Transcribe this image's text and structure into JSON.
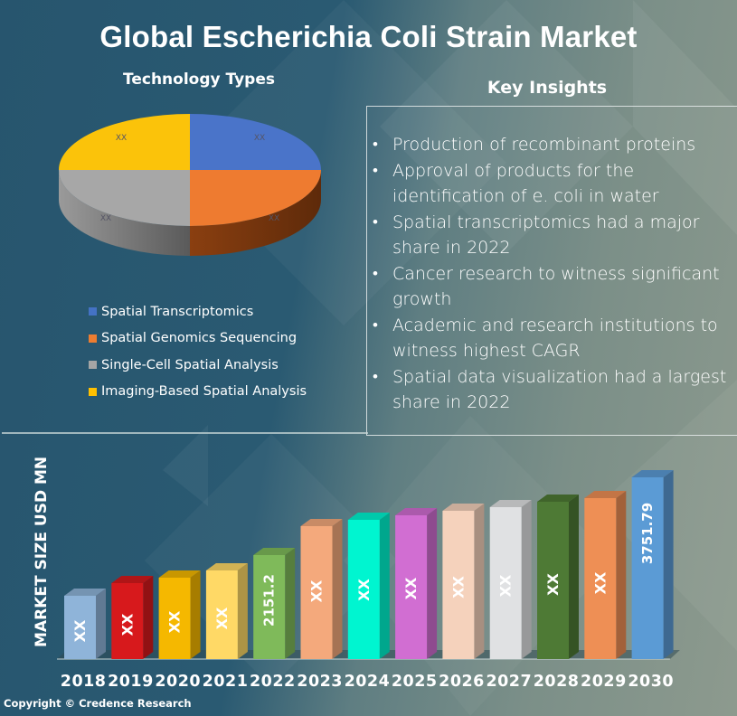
{
  "title": "Global Escherichia Coli Strain Market",
  "pie_section": {
    "heading": "Technology Types",
    "slices": [
      {
        "label": "Spatial Transcriptomics",
        "value_label": "XX",
        "color": "#4472c4"
      },
      {
        "label": "Spatial Genomics Sequencing",
        "value_label": "XX",
        "color": "#ed7d31"
      },
      {
        "label": "Single-Cell Spatial Analysis",
        "value_label": "XX",
        "color": "#a5a5a5"
      },
      {
        "label": "Imaging-Based Spatial Analysis",
        "value_label": "XX",
        "color": "#ffc000"
      }
    ]
  },
  "insights": {
    "heading": "Key Insights",
    "items": [
      "Production of recombinant proteins",
      "Approval of products for the identification of e. coli in water",
      "Spatial transcriptomics had a major share in 2022",
      "Cancer research to witness significant growth",
      "Academic and research institutions to witness highest CAGR",
      "Spatial data visualization had a largest share in 2022"
    ]
  },
  "bar_section": {
    "ylabel": "MARKET SIZE USD MN",
    "copyright": "Copyright © Credence Research"
  },
  "chart_data": [
    {
      "type": "pie",
      "title": "Technology Types",
      "categories": [
        "Spatial Transcriptomics",
        "Spatial Genomics Sequencing",
        "Single-Cell Spatial Analysis",
        "Imaging-Based Spatial Analysis"
      ],
      "values": [
        25,
        25,
        25,
        25
      ],
      "data_labels": [
        "XX",
        "XX",
        "XX",
        "XX"
      ],
      "colors": [
        "#4472c4",
        "#ed7d31",
        "#a5a5a5",
        "#ffc000"
      ],
      "legend_position": "bottom"
    },
    {
      "type": "bar",
      "title": "Global Escherichia Coli Strain Market",
      "xlabel": "",
      "ylabel": "MARKET SIZE USD MN",
      "categories": [
        "2018",
        "2019",
        "2020",
        "2021",
        "2022",
        "2023",
        "2024",
        "2025",
        "2026",
        "2027",
        "2028",
        "2029",
        "2030"
      ],
      "values": [
        1300,
        1560,
        1680,
        1830,
        2151.2,
        2750,
        2870,
        2960,
        3060,
        3130,
        3240,
        3330,
        3751.79
      ],
      "data_labels": [
        "XX",
        "XX",
        "XX",
        "XX",
        "2151.2",
        "XX",
        "XX",
        "XX",
        "XX",
        "XX",
        "XX",
        "XX",
        "3751.79"
      ],
      "colors": [
        "#8fb4d9",
        "#d7191c",
        "#f5b800",
        "#ffd966",
        "#7fba5a",
        "#f4a97c",
        "#00f5d0",
        "#d16ed2",
        "#f5d2bc",
        "#e0e1e3",
        "#4e7a35",
        "#ee8f55",
        "#5b9bd5"
      ],
      "grid": false,
      "style": "3d-column"
    }
  ]
}
